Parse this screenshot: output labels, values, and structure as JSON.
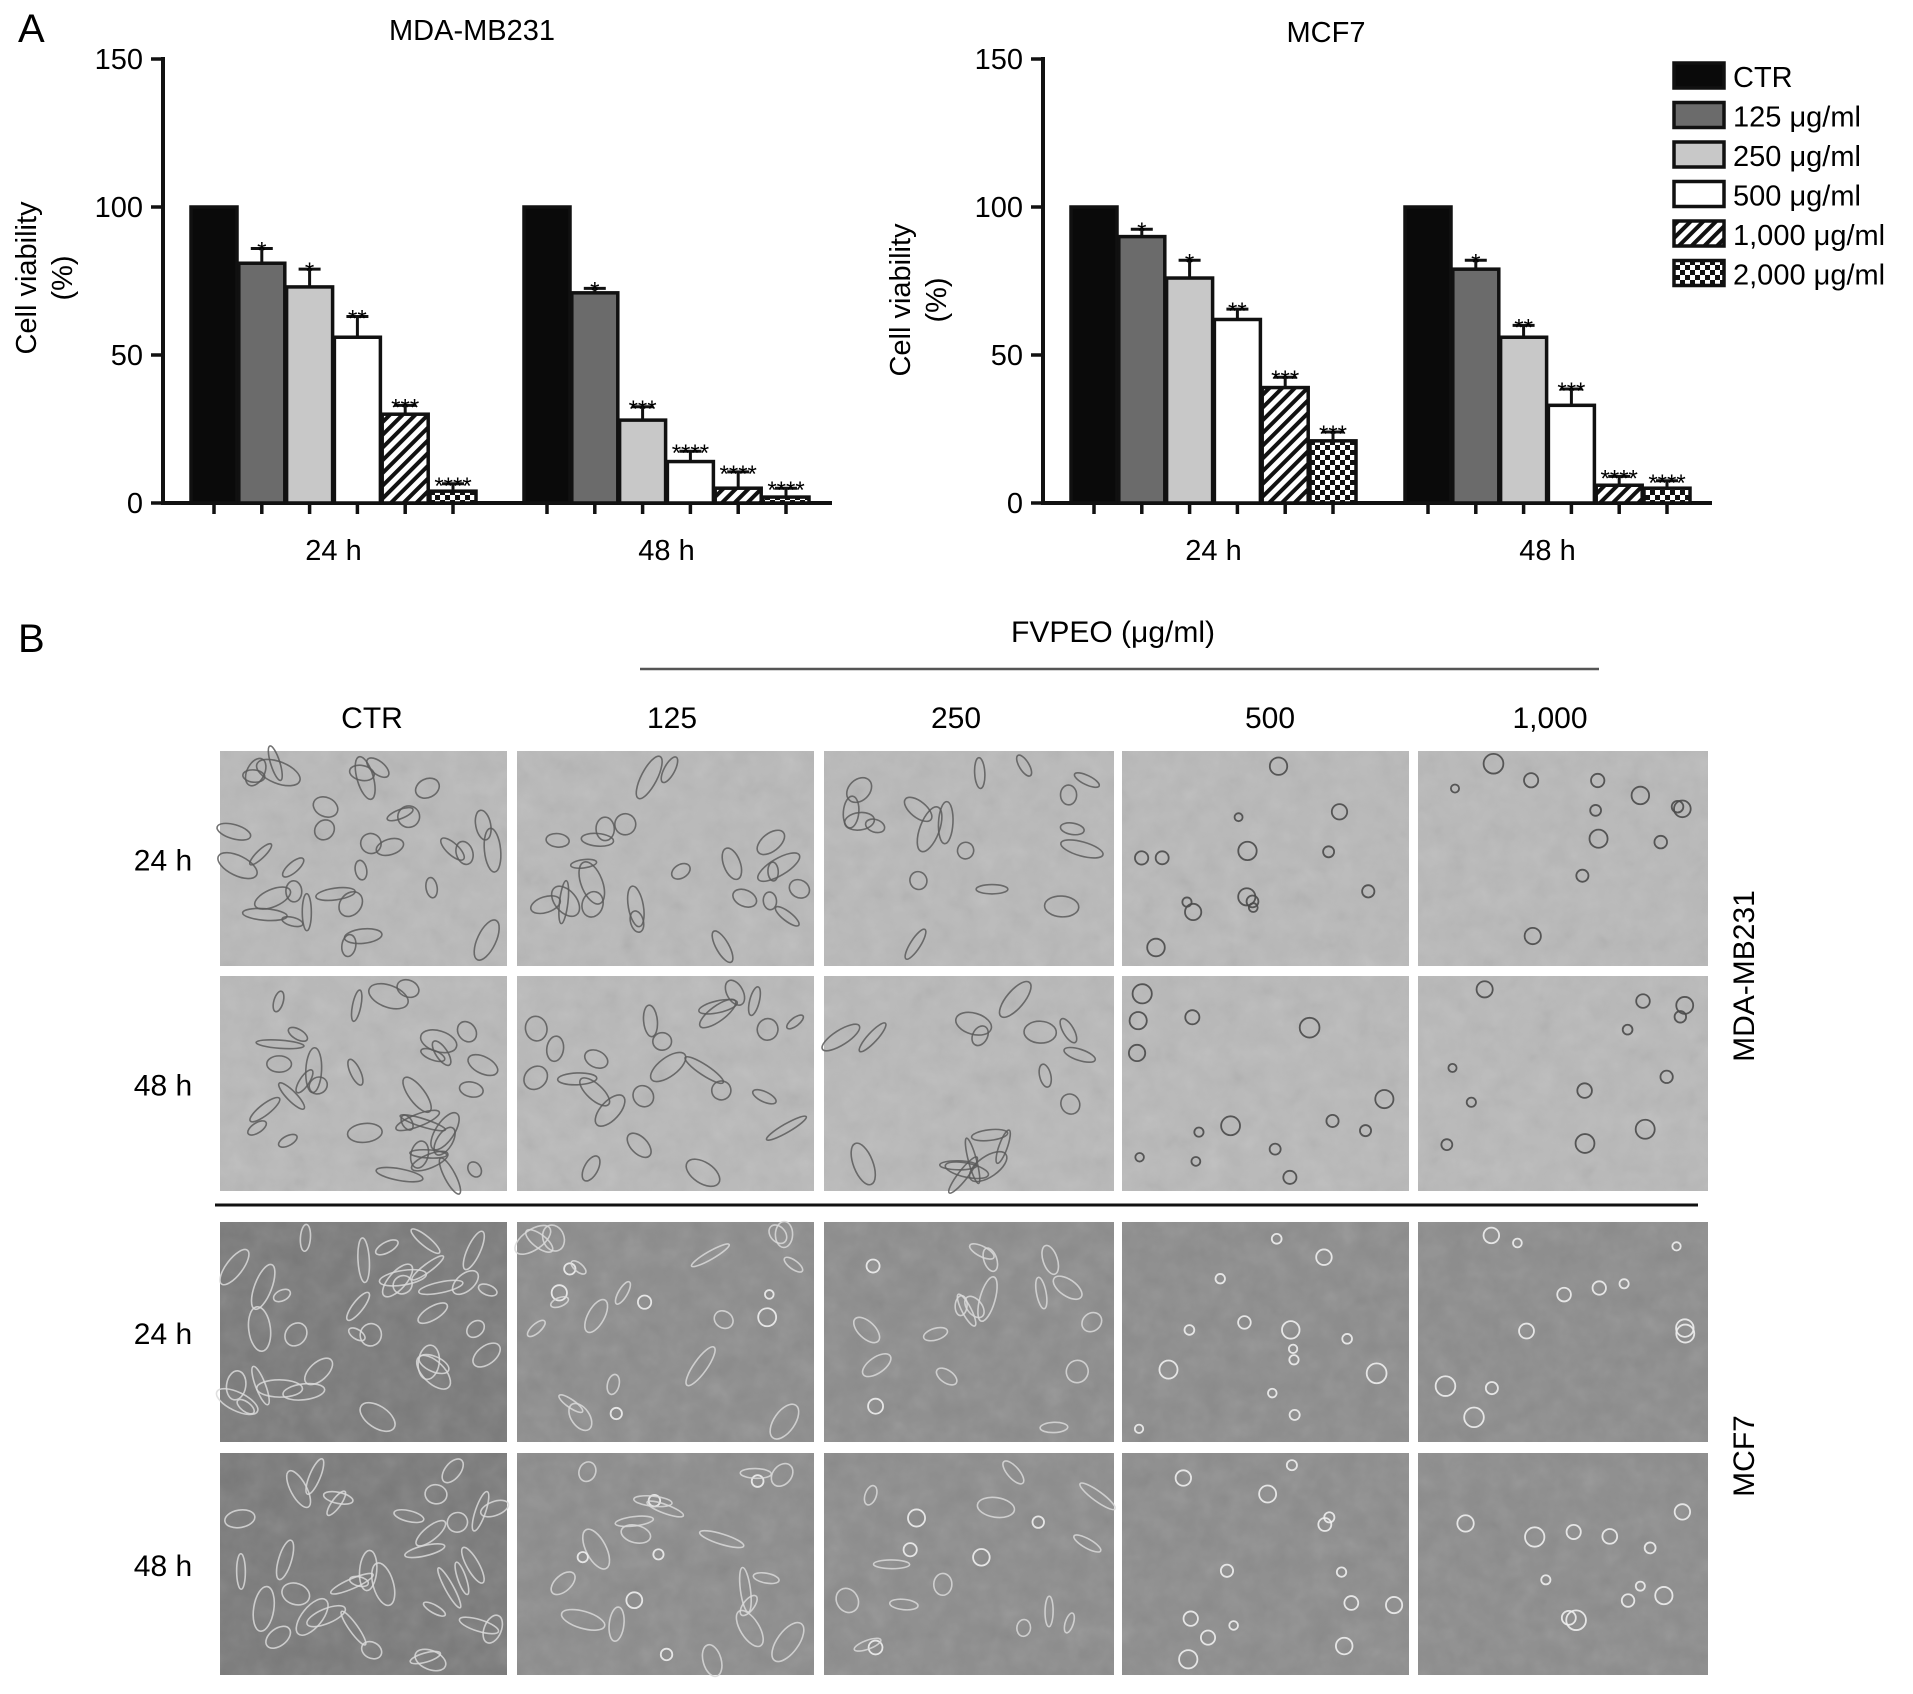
{
  "panel_a_label": "A",
  "panel_b_label": "B",
  "chart_data": [
    {
      "type": "bar",
      "title": "MDA-MB231",
      "ylabel_line1": "Cell viability",
      "ylabel_line2": "(%)",
      "ylim": [
        0,
        150
      ],
      "yticks": [
        "0",
        "50",
        "100",
        "150"
      ],
      "categories": [
        "24 h",
        "48 h"
      ],
      "series": [
        {
          "name": "CTR",
          "values": [
            100,
            100
          ],
          "errors": [
            0,
            0
          ],
          "sig": [
            "",
            ""
          ]
        },
        {
          "name": "125 μg/ml",
          "values": [
            81,
            71
          ],
          "errors": [
            5,
            1.5
          ],
          "sig": [
            "*",
            "*"
          ]
        },
        {
          "name": "250 μg/ml",
          "values": [
            73,
            28
          ],
          "errors": [
            6,
            4.5
          ],
          "sig": [
            "*",
            "***"
          ]
        },
        {
          "name": "500 μg/ml",
          "values": [
            56,
            14
          ],
          "errors": [
            7,
            3.5
          ],
          "sig": [
            "**",
            "****"
          ]
        },
        {
          "name": "1,000 μg/ml",
          "values": [
            30,
            5
          ],
          "errors": [
            3,
            5.5
          ],
          "sig": [
            "***",
            "****"
          ]
        },
        {
          "name": "2,000 μg/ml",
          "values": [
            4,
            2
          ],
          "errors": [
            2.5,
            3
          ],
          "sig": [
            "****",
            "****"
          ]
        }
      ]
    },
    {
      "type": "bar",
      "title": "MCF7",
      "ylabel_line1": "Cell viability",
      "ylabel_line2": "(%)",
      "ylim": [
        0,
        150
      ],
      "yticks": [
        "0",
        "50",
        "100",
        "150"
      ],
      "categories": [
        "24 h",
        "48 h"
      ],
      "series": [
        {
          "name": "CTR",
          "values": [
            100,
            100
          ],
          "errors": [
            0,
            0
          ],
          "sig": [
            "",
            ""
          ]
        },
        {
          "name": "125 μg/ml",
          "values": [
            90,
            79
          ],
          "errors": [
            2.5,
            3
          ],
          "sig": [
            "*",
            "*"
          ]
        },
        {
          "name": "250 μg/ml",
          "values": [
            76,
            56
          ],
          "errors": [
            6,
            4
          ],
          "sig": [
            "*",
            "**"
          ]
        },
        {
          "name": "500 μg/ml",
          "values": [
            62,
            33
          ],
          "errors": [
            3.5,
            5.5
          ],
          "sig": [
            "**",
            "***"
          ]
        },
        {
          "name": "1,000 μg/ml",
          "values": [
            39,
            6
          ],
          "errors": [
            3.5,
            3
          ],
          "sig": [
            "***",
            "****"
          ]
        },
        {
          "name": "2,000 μg/ml",
          "values": [
            21,
            5
          ],
          "errors": [
            3,
            2.5
          ],
          "sig": [
            "***",
            "****"
          ]
        }
      ]
    }
  ],
  "legend": {
    "items": [
      "CTR",
      "125 μg/ml",
      "250 μg/ml",
      "500 μg/ml",
      "1,000 μg/ml",
      "2,000 μg/ml"
    ],
    "fills": [
      "#0a0a0a",
      "#6b6b6b",
      "#c8c8c8",
      "#ffffff",
      "hatch",
      "checker"
    ]
  },
  "micrographs": {
    "treatment_header": "FVPEO (μg/ml)",
    "columns": [
      "CTR",
      "125",
      "250",
      "500",
      "1,000"
    ],
    "row_labels": [
      "24 h",
      "48 h",
      "24 h",
      "48 h"
    ],
    "cell_lines": [
      "MDA-MB231",
      "MCF7"
    ]
  }
}
